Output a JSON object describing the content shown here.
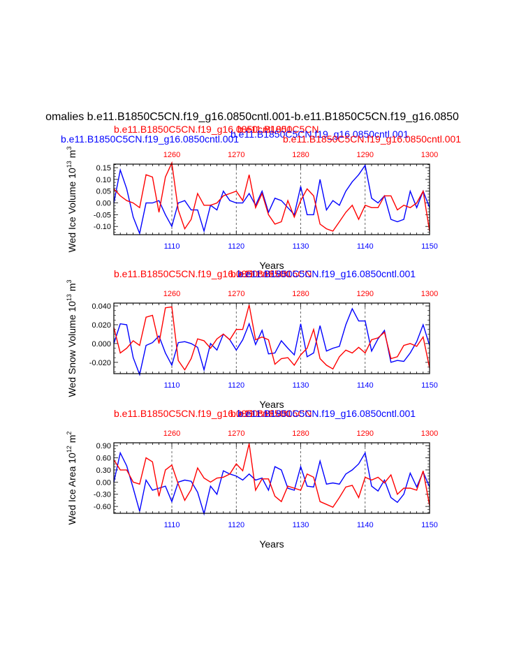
{
  "colors": {
    "blue": "#0000ff",
    "red": "#ff0000",
    "black": "#000000"
  },
  "page_title": "omalies b.e11.B1850C5CN.f19_g16.0850cntl.001-b.e11.B1850C5CN.f19_g16.0850",
  "chart_data": [
    {
      "type": "line",
      "ylabel": "Wed Ice Volume 10",
      "ylabel_exp": "13",
      "ylabel_unit": " m",
      "ylabel_unit_exp": "3",
      "xlabel": "Years",
      "title_left": "b.e11.B1850C5CN.f19_g16.0850cntl.001",
      "title_right": "b.e11.B1850C5CN.f19_g16.0850cntl.001",
      "title_center": "b.e11.B1850C5CN.f19_g16.0850cntl.001",
      "top_red_title_left": "b.e11.B1850C5CN.f19_g16.0850cntl.001",
      "top_red_title_center": "b.e11.B1850C5CN",
      "ylim": [
        -0.135,
        0.165
      ],
      "yticks": [
        -0.1,
        -0.05,
        0.0,
        0.05,
        0.1,
        0.15
      ],
      "ytick_labels": [
        "-0.10",
        "-0.05",
        "0.00",
        "0.05",
        "0.10",
        "0.15"
      ],
      "xlim_bottom": [
        1101,
        1150
      ],
      "xticks_bottom": [
        1110,
        1120,
        1130,
        1140,
        1150
      ],
      "xticks_top": [
        1260,
        1270,
        1280,
        1290,
        1300
      ],
      "series": [
        {
          "name": "blue",
          "color": "#0000ff",
          "values": [
            0.0,
            0.14,
            0.06,
            -0.06,
            -0.13,
            0.0,
            0.0,
            0.01,
            -0.05,
            -0.1,
            0.0,
            0.01,
            -0.03,
            -0.03,
            -0.12,
            -0.01,
            -0.03,
            0.05,
            0.01,
            0.0,
            0.0,
            0.04,
            -0.01,
            0.05,
            -0.04,
            0.02,
            0.01,
            -0.02,
            -0.05,
            0.07,
            -0.05,
            -0.05,
            0.1,
            -0.03,
            0.01,
            -0.01,
            0.05,
            0.09,
            0.12,
            0.16,
            0.02,
            0.0,
            0.03,
            -0.07,
            -0.08,
            -0.07,
            0.05,
            -0.02,
            0.05,
            -0.02
          ]
        },
        {
          "name": "red",
          "color": "#ff0000",
          "values": [
            0.06,
            0.03,
            0.01,
            0.0,
            -0.02,
            0.12,
            0.11,
            -0.04,
            0.11,
            0.17,
            -0.03,
            -0.11,
            -0.07,
            0.04,
            -0.01,
            -0.01,
            0.0,
            0.03,
            0.04,
            0.05,
            0.01,
            0.12,
            -0.02,
            0.04,
            -0.05,
            -0.09,
            -0.08,
            0.01,
            -0.06,
            0.01,
            0.06,
            0.03,
            -0.09,
            -0.11,
            -0.12,
            -0.08,
            -0.04,
            -0.01,
            -0.07,
            -0.01,
            -0.02,
            -0.02,
            0.03,
            0.03,
            -0.03,
            -0.01,
            -0.02,
            0.0,
            0.05,
            -0.12
          ]
        }
      ]
    },
    {
      "type": "line",
      "ylabel": "Wed Snow Volume 10",
      "ylabel_exp": "13",
      "ylabel_unit": " m",
      "ylabel_unit_exp": "3",
      "xlabel": "Years",
      "title_left": "b.e11.B1850C5CN.f19_g16.0850cntl.001",
      "title_right": "b.e11.B1850C5CN.f19_g16.0850cntl.001",
      "title_center": "b.e11.B1850C5CN",
      "ylim": [
        -0.032,
        0.043
      ],
      "yticks": [
        -0.02,
        0.0,
        0.02,
        0.04
      ],
      "ytick_labels": [
        "-0.020",
        "0.000",
        "0.020",
        "0.040"
      ],
      "xlim_bottom": [
        1101,
        1150
      ],
      "xticks_bottom": [
        1110,
        1120,
        1130,
        1140,
        1150
      ],
      "xticks_top": [
        1260,
        1270,
        1280,
        1290,
        1300
      ],
      "series": [
        {
          "name": "blue",
          "color": "#0000ff",
          "values": [
            0.0,
            0.021,
            0.02,
            -0.015,
            -0.033,
            -0.002,
            0.001,
            0.008,
            -0.01,
            -0.023,
            0.001,
            0.002,
            0.0,
            -0.004,
            -0.028,
            0.0,
            -0.007,
            0.01,
            0.004,
            -0.007,
            0.004,
            0.021,
            -0.001,
            0.014,
            -0.011,
            -0.01,
            0.003,
            -0.005,
            -0.012,
            0.021,
            -0.014,
            -0.01,
            0.019,
            -0.008,
            -0.005,
            -0.003,
            0.02,
            0.037,
            0.024,
            0.024,
            -0.008,
            0.005,
            0.014,
            -0.02,
            -0.018,
            -0.019,
            -0.01,
            0.002,
            0.02,
            -0.002
          ]
        },
        {
          "name": "red",
          "color": "#ff0000",
          "values": [
            0.017,
            -0.01,
            -0.005,
            0.003,
            -0.002,
            0.028,
            0.03,
            0.0,
            0.038,
            0.039,
            -0.018,
            -0.028,
            -0.016,
            0.005,
            0.003,
            -0.005,
            0.005,
            0.01,
            0.004,
            0.015,
            0.015,
            0.041,
            0.004,
            0.007,
            0.004,
            -0.022,
            -0.016,
            -0.015,
            -0.023,
            -0.012,
            -0.005,
            0.015,
            -0.016,
            -0.023,
            -0.027,
            -0.014,
            -0.007,
            -0.01,
            -0.004,
            -0.01,
            0.004,
            0.006,
            0.012,
            -0.016,
            -0.014,
            -0.002,
            0.0,
            -0.003,
            0.007,
            -0.026
          ]
        }
      ]
    },
    {
      "type": "line",
      "ylabel": "Wed Ice Area 10",
      "ylabel_exp": "12",
      "ylabel_unit": " m",
      "ylabel_unit_exp": "2",
      "xlabel": "Years",
      "title_left": "b.e11.B1850C5CN.f19_g16.0850cntl.001",
      "title_right": "b.e11.B1850C5CN.f19_g16.0850cntl.001",
      "title_center": "b.e11.B1850C5CN",
      "ylim": [
        -0.77,
        0.97
      ],
      "yticks": [
        -0.6,
        -0.3,
        0.0,
        0.3,
        0.6,
        0.9
      ],
      "ytick_labels": [
        "-0.60",
        "-0.30",
        "0.00",
        "0.30",
        "0.60",
        "0.90"
      ],
      "xlim_bottom": [
        1101,
        1150
      ],
      "xticks_bottom": [
        1110,
        1120,
        1130,
        1140,
        1150
      ],
      "xticks_top": [
        1260,
        1270,
        1280,
        1290,
        1300
      ],
      "series": [
        {
          "name": "blue",
          "color": "#0000ff",
          "values": [
            0.0,
            0.72,
            0.4,
            -0.15,
            -0.72,
            0.05,
            -0.2,
            -0.15,
            -0.1,
            -0.48,
            0.0,
            0.05,
            0.02,
            -0.25,
            -0.78,
            -0.1,
            -0.3,
            0.28,
            0.2,
            0.15,
            0.05,
            0.2,
            0.05,
            0.1,
            -0.2,
            0.38,
            0.3,
            -0.15,
            -0.2,
            0.38,
            -0.1,
            -0.12,
            0.52,
            -0.05,
            -0.02,
            -0.05,
            0.2,
            0.3,
            0.45,
            0.72,
            -0.1,
            -0.22,
            0.05,
            -0.38,
            -0.5,
            -0.3,
            0.22,
            -0.12,
            0.25,
            -0.12
          ]
        },
        {
          "name": "red",
          "color": "#ff0000",
          "values": [
            0.55,
            0.3,
            0.3,
            0.0,
            -0.05,
            0.6,
            0.5,
            -0.35,
            0.3,
            0.42,
            -0.05,
            -0.45,
            -0.18,
            0.35,
            0.1,
            0.0,
            0.1,
            0.12,
            0.2,
            0.45,
            0.28,
            0.95,
            -0.2,
            0.08,
            0.08,
            -0.35,
            -0.48,
            -0.1,
            -0.15,
            -0.2,
            0.2,
            0.12,
            -0.48,
            -0.55,
            -0.62,
            -0.38,
            -0.12,
            -0.08,
            -0.38,
            0.12,
            0.05,
            0.12,
            -0.02,
            0.18,
            -0.3,
            -0.15,
            -0.15,
            -0.2,
            0.28,
            -0.58
          ]
        }
      ]
    }
  ]
}
